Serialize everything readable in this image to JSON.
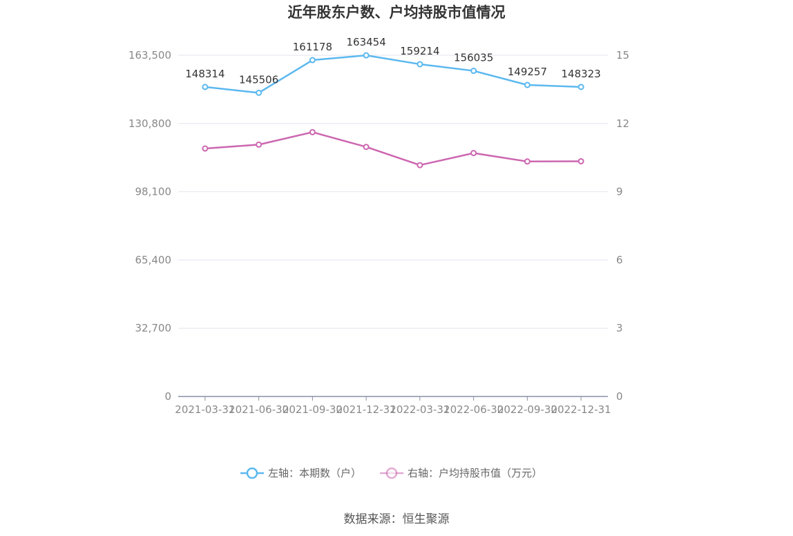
{
  "source": "数据来源：恒生聚源",
  "chart_data": {
    "type": "line",
    "title": "近年股东户数、户均持股市值情况",
    "categories": [
      "2021-03-31",
      "2021-06-30",
      "2021-09-30",
      "2021-12-31",
      "2022-03-31",
      "2022-06-30",
      "2022-09-30",
      "2022-12-31"
    ],
    "left_axis": {
      "ticks": [
        "0",
        "32,700",
        "65,400",
        "98,100",
        "130,800",
        "163,500"
      ],
      "ylim": [
        0,
        163500
      ]
    },
    "right_axis": {
      "ticks": [
        "0",
        "3",
        "6",
        "9",
        "12",
        "15"
      ],
      "ylim": [
        0,
        15
      ]
    },
    "grid": true,
    "legend_position": "bottom",
    "series": [
      {
        "name": "左轴：本期数（户）",
        "axis": "left",
        "color": "#5bb8ef",
        "values": [
          148314,
          145506,
          161178,
          163454,
          159214,
          156035,
          149257,
          148323
        ],
        "labels": [
          "148314",
          "145506",
          "161178",
          "163454",
          "159214",
          "156035",
          "149257",
          "148323"
        ]
      },
      {
        "name": "右轴：户均持股市值（万元）",
        "axis": "right",
        "color": "#cc66b0",
        "values": [
          10.9,
          11.07,
          11.62,
          10.97,
          10.17,
          10.7,
          10.33,
          10.34
        ]
      }
    ]
  }
}
